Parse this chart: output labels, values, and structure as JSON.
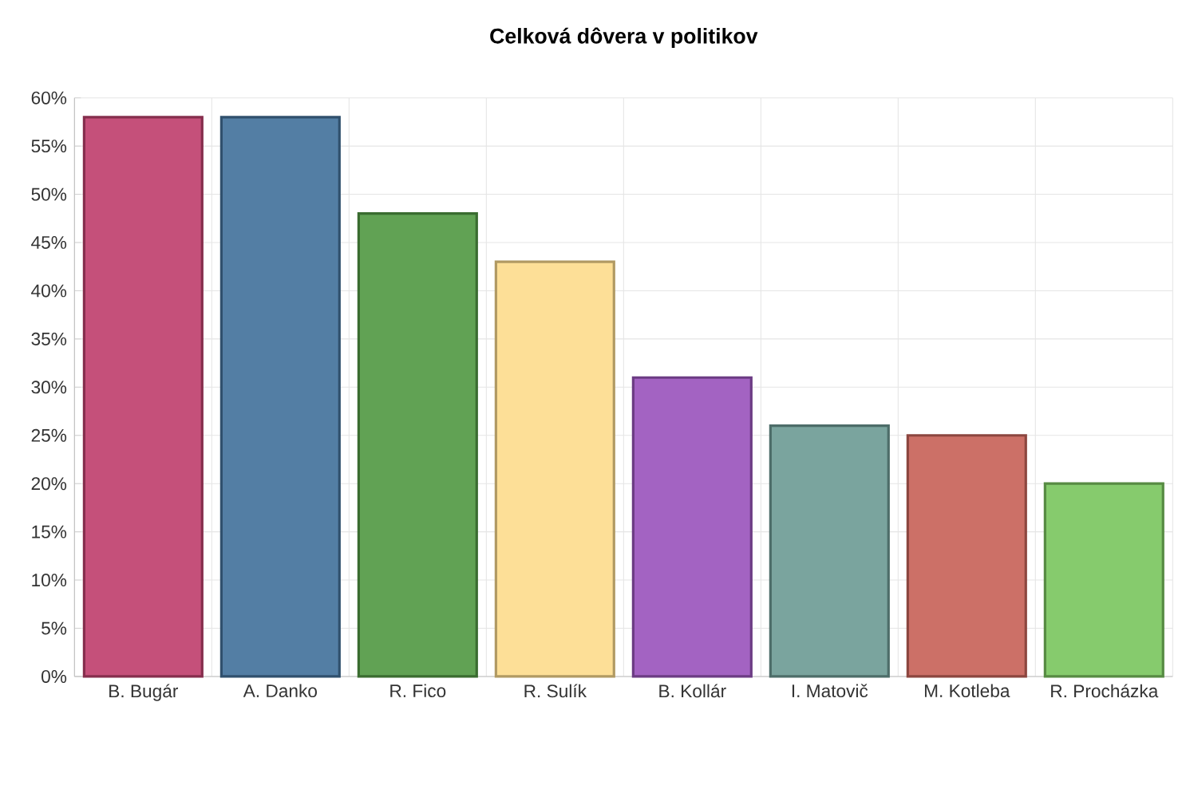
{
  "chart_data": {
    "type": "bar",
    "title": "Celková dôvera v politikov",
    "categories": [
      "B. Bugár",
      "A. Danko",
      "R. Fico",
      "R. Sulík",
      "B. Kollár",
      "I. Matovič",
      "M. Kotleba",
      "R. Procházka"
    ],
    "values": [
      58,
      58,
      48,
      43,
      31,
      26,
      25,
      20
    ],
    "colors": [
      "#c0416e",
      "#44739c",
      "#539a45",
      "#fddc8e",
      "#9b55bd",
      "#6e9c96",
      "#c8645a",
      "#7cc660"
    ],
    "ylim": [
      0,
      60
    ],
    "yticks": [
      {
        "value": 0,
        "label": "0%"
      },
      {
        "value": 5,
        "label": "5%"
      },
      {
        "value": 10,
        "label": "10%"
      },
      {
        "value": 15,
        "label": "15%"
      },
      {
        "value": 20,
        "label": "20%"
      },
      {
        "value": 25,
        "label": "25%"
      },
      {
        "value": 30,
        "label": "30%"
      },
      {
        "value": 35,
        "label": "35%"
      },
      {
        "value": 40,
        "label": "40%"
      },
      {
        "value": 45,
        "label": "45%"
      },
      {
        "value": 50,
        "label": "50%"
      },
      {
        "value": 55,
        "label": "55%"
      },
      {
        "value": 60,
        "label": "60%"
      }
    ],
    "grid": true
  }
}
